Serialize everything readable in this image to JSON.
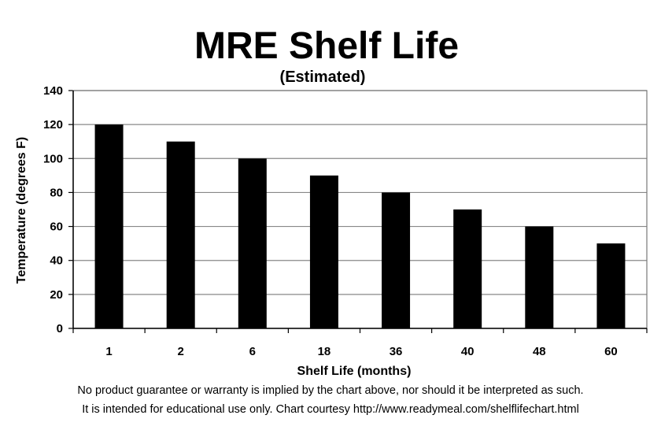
{
  "chart_data": {
    "type": "bar",
    "title": "MRE Shelf Life",
    "subtitle": "(Estimated)",
    "xlabel": "Shelf Life (months)",
    "ylabel": "Temperature (degrees F)",
    "categories": [
      "1",
      "2",
      "6",
      "18",
      "36",
      "40",
      "48",
      "60"
    ],
    "values": [
      120,
      110,
      100,
      90,
      80,
      70,
      60,
      50
    ],
    "ylim": [
      0,
      140
    ],
    "yticks": [
      0,
      20,
      40,
      60,
      80,
      100,
      120,
      140
    ],
    "grid": true,
    "bar_color": "#000000",
    "grid_color": "#888888"
  },
  "footer": {
    "line1": "No product guarantee or warranty is implied by the chart above, nor should it be interpreted as such.",
    "line2": "It is intended for educational use only. Chart courtesy http://www.readymeal.com/shelflifechart.html"
  }
}
